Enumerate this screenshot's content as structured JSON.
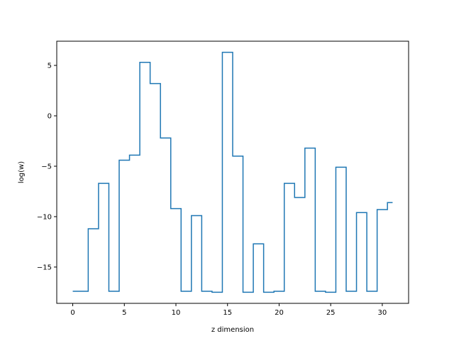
{
  "chart_data": {
    "type": "line",
    "drawstyle": "steps-mid",
    "xlabel": "z dimension",
    "ylabel": "log(w)",
    "xlim": [
      -1.55,
      32.55
    ],
    "ylim": [
      -18.6,
      7.4
    ],
    "xticks": [
      0,
      5,
      10,
      15,
      20,
      25,
      30
    ],
    "yticks": [
      -15,
      -10,
      -5,
      0,
      5
    ],
    "xtick_labels": [
      "0",
      "5",
      "10",
      "15",
      "20",
      "25",
      "30"
    ],
    "ytick_labels": [
      "−15",
      "−10",
      "−5",
      "0",
      "5"
    ],
    "grid": false,
    "line_color": "#1f77b4",
    "series": [
      {
        "x": [
          0,
          1,
          2,
          3,
          4,
          5,
          6,
          7,
          8,
          9,
          10,
          11,
          12,
          13,
          14,
          15,
          16,
          17,
          18,
          19,
          20,
          21,
          22,
          23,
          24,
          25,
          26,
          27,
          28,
          29,
          30,
          31
        ],
        "y": [
          -17.4,
          -17.4,
          -11.2,
          -6.7,
          -17.4,
          -4.4,
          -3.9,
          5.3,
          3.2,
          -2.2,
          -9.2,
          -17.4,
          -9.9,
          -17.4,
          -17.5,
          6.3,
          -4.0,
          -17.5,
          -12.7,
          -17.5,
          -17.4,
          -6.7,
          -8.1,
          -3.2,
          -17.4,
          -17.5,
          -5.1,
          -17.4,
          -9.6,
          -17.4,
          -9.3,
          -8.6
        ]
      }
    ]
  }
}
